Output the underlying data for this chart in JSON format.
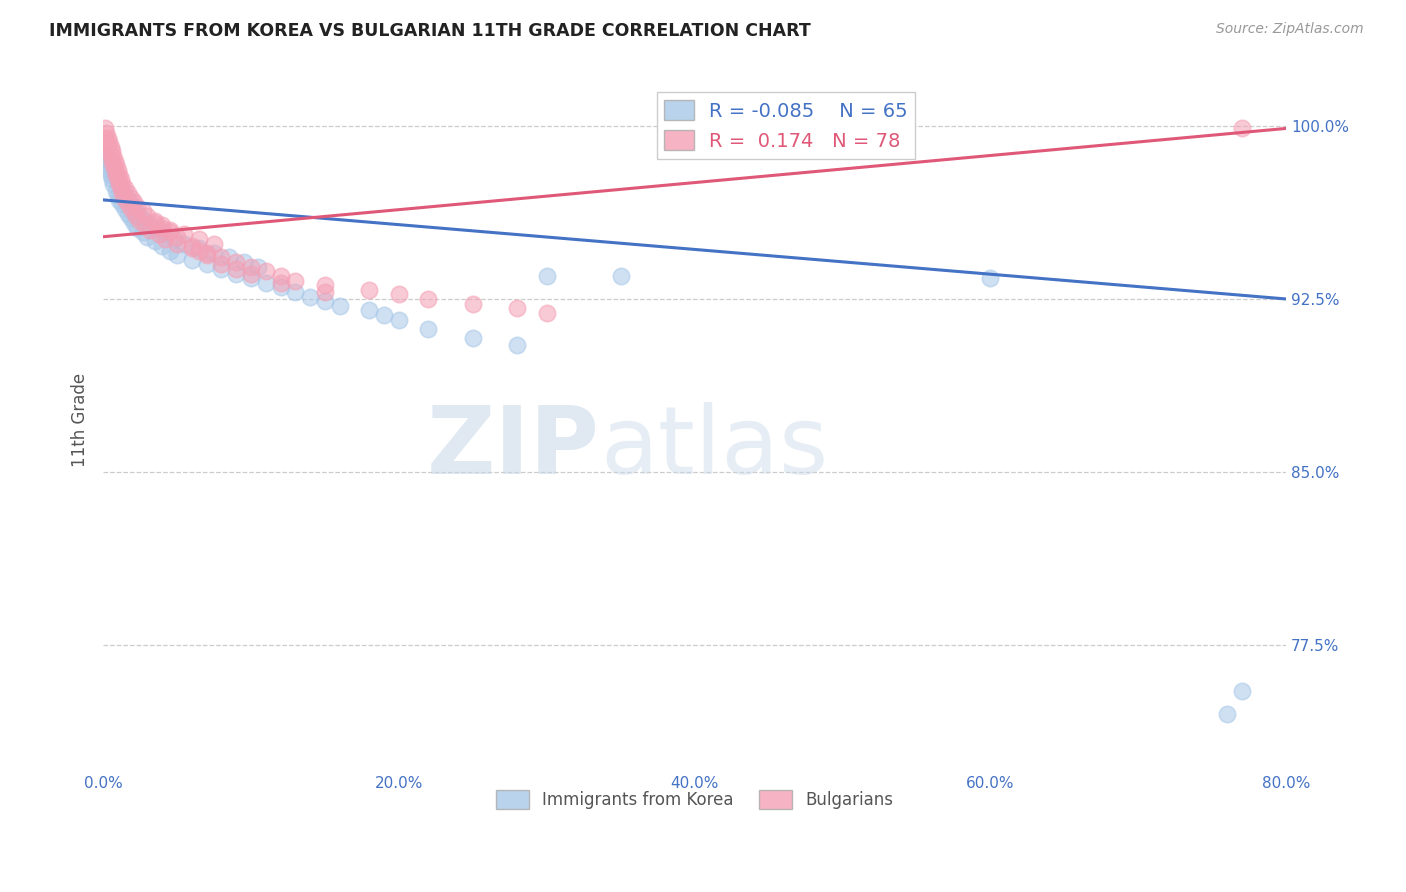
{
  "title": "IMMIGRANTS FROM KOREA VS BULGARIAN 11TH GRADE CORRELATION CHART",
  "source": "Source: ZipAtlas.com",
  "ylabel": "11th Grade",
  "right_yticks": [
    "100.0%",
    "92.5%",
    "85.0%",
    "77.5%"
  ],
  "right_ytick_vals": [
    1.0,
    0.925,
    0.85,
    0.775
  ],
  "watermark_zip": "ZIP",
  "watermark_atlas": "atlas",
  "legend_blue_R": "-0.085",
  "legend_blue_N": "65",
  "legend_pink_R": "0.174",
  "legend_pink_N": "78",
  "blue_color": "#a8c8e8",
  "pink_color": "#f4a0b5",
  "blue_line_color": "#4472c4",
  "pink_line_color": "#e05878",
  "xlim": [
    0.0,
    0.8
  ],
  "ylim": [
    0.72,
    1.025
  ],
  "blue_scatter_x": [
    0.001,
    0.002,
    0.003,
    0.004,
    0.005,
    0.005,
    0.006,
    0.007,
    0.008,
    0.009,
    0.01,
    0.01,
    0.011,
    0.012,
    0.013,
    0.014,
    0.015,
    0.016,
    0.017,
    0.018,
    0.019,
    0.02,
    0.021,
    0.022,
    0.023,
    0.025,
    0.027,
    0.028,
    0.03,
    0.032,
    0.035,
    0.038,
    0.04,
    0.042,
    0.045,
    0.048,
    0.05,
    0.055,
    0.06,
    0.065,
    0.07,
    0.075,
    0.08,
    0.085,
    0.09,
    0.095,
    0.1,
    0.105,
    0.11,
    0.12,
    0.13,
    0.14,
    0.15,
    0.16,
    0.18,
    0.19,
    0.2,
    0.22,
    0.25,
    0.28,
    0.3,
    0.35,
    0.6,
    0.76,
    0.77
  ],
  "blue_scatter_y": [
    0.988,
    0.985,
    0.983,
    0.981,
    0.979,
    0.984,
    0.977,
    0.975,
    0.98,
    0.972,
    0.97,
    0.976,
    0.968,
    0.973,
    0.966,
    0.971,
    0.964,
    0.969,
    0.962,
    0.967,
    0.96,
    0.965,
    0.958,
    0.963,
    0.956,
    0.961,
    0.954,
    0.959,
    0.952,
    0.957,
    0.95,
    0.955,
    0.948,
    0.953,
    0.946,
    0.951,
    0.944,
    0.949,
    0.942,
    0.947,
    0.94,
    0.945,
    0.938,
    0.943,
    0.936,
    0.941,
    0.934,
    0.939,
    0.932,
    0.93,
    0.928,
    0.926,
    0.924,
    0.922,
    0.92,
    0.918,
    0.916,
    0.912,
    0.908,
    0.905,
    0.935,
    0.935,
    0.934,
    0.745,
    0.755
  ],
  "pink_scatter_x": [
    0.001,
    0.001,
    0.002,
    0.002,
    0.003,
    0.003,
    0.004,
    0.004,
    0.005,
    0.005,
    0.006,
    0.006,
    0.007,
    0.007,
    0.008,
    0.008,
    0.009,
    0.009,
    0.01,
    0.01,
    0.011,
    0.011,
    0.012,
    0.012,
    0.013,
    0.013,
    0.014,
    0.015,
    0.016,
    0.017,
    0.018,
    0.019,
    0.02,
    0.021,
    0.022,
    0.023,
    0.025,
    0.027,
    0.028,
    0.03,
    0.032,
    0.035,
    0.038,
    0.04,
    0.042,
    0.045,
    0.05,
    0.055,
    0.06,
    0.065,
    0.07,
    0.075,
    0.08,
    0.09,
    0.1,
    0.11,
    0.12,
    0.13,
    0.15,
    0.18,
    0.2,
    0.22,
    0.25,
    0.28,
    0.3,
    0.035,
    0.04,
    0.045,
    0.05,
    0.06,
    0.065,
    0.07,
    0.08,
    0.09,
    0.1,
    0.12,
    0.15,
    0.77
  ],
  "pink_scatter_y": [
    0.995,
    0.999,
    0.993,
    0.997,
    0.991,
    0.995,
    0.989,
    0.993,
    0.987,
    0.991,
    0.985,
    0.989,
    0.983,
    0.987,
    0.981,
    0.985,
    0.979,
    0.983,
    0.977,
    0.981,
    0.975,
    0.979,
    0.973,
    0.977,
    0.971,
    0.975,
    0.969,
    0.973,
    0.967,
    0.971,
    0.965,
    0.969,
    0.963,
    0.967,
    0.961,
    0.965,
    0.959,
    0.963,
    0.957,
    0.961,
    0.955,
    0.959,
    0.953,
    0.957,
    0.951,
    0.955,
    0.949,
    0.953,
    0.947,
    0.951,
    0.945,
    0.949,
    0.943,
    0.941,
    0.939,
    0.937,
    0.935,
    0.933,
    0.931,
    0.929,
    0.927,
    0.925,
    0.923,
    0.921,
    0.919,
    0.958,
    0.956,
    0.954,
    0.952,
    0.948,
    0.946,
    0.944,
    0.94,
    0.938,
    0.936,
    0.932,
    0.928,
    0.999
  ],
  "blue_line_x0": 0.0,
  "blue_line_x1": 0.8,
  "blue_line_y0": 0.968,
  "blue_line_y1": 0.925,
  "pink_line_x0": 0.0,
  "pink_line_x1": 0.8,
  "pink_line_y0": 0.952,
  "pink_line_y1": 0.999
}
